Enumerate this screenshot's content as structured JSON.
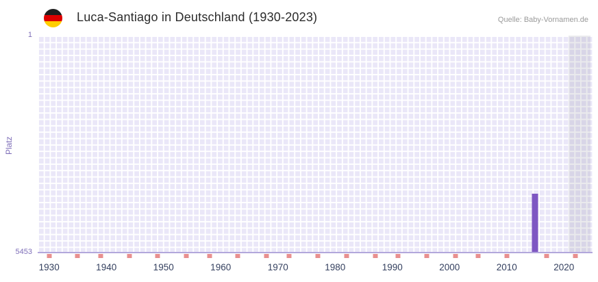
{
  "header": {
    "title": "Luca-Santiago in Deutschland (1930-2023)",
    "source": "Quelle: Baby-Vornamen.de",
    "flag_icon": "germany-flag"
  },
  "chart_data": {
    "type": "bar",
    "title": "Luca-Santiago in Deutschland (1930-2023)",
    "xlabel": "",
    "ylabel": "Platz",
    "legend": "none",
    "grid": {
      "on": true,
      "line_color": "#ffffff",
      "background": "#eae7f8"
    },
    "y_axis": {
      "top_label": "1",
      "bottom_label": "5453",
      "min": 1,
      "max": 5453,
      "inverted": true
    },
    "x_axis": {
      "min": 1928,
      "max": 2025,
      "ticks": [
        1930,
        1940,
        1950,
        1960,
        1970,
        1980,
        1990,
        2000,
        2010,
        2020
      ]
    },
    "series": [
      {
        "name": "Platz",
        "color": "#7e57c2",
        "points": [
          {
            "x": 2015,
            "y": 3990
          }
        ]
      }
    ],
    "axis_markers": {
      "color": "#e88f8f",
      "years": [
        1930,
        1935,
        1939,
        1944,
        1949,
        1954,
        1958,
        1963,
        1968,
        1972,
        1977,
        1982,
        1987,
        1991,
        1996,
        2001,
        2005,
        2010,
        2017,
        2022
      ]
    },
    "highlight_band": {
      "from": 2020.8,
      "to": 2024.6,
      "color": "rgba(115,115,135,0.15)"
    }
  }
}
